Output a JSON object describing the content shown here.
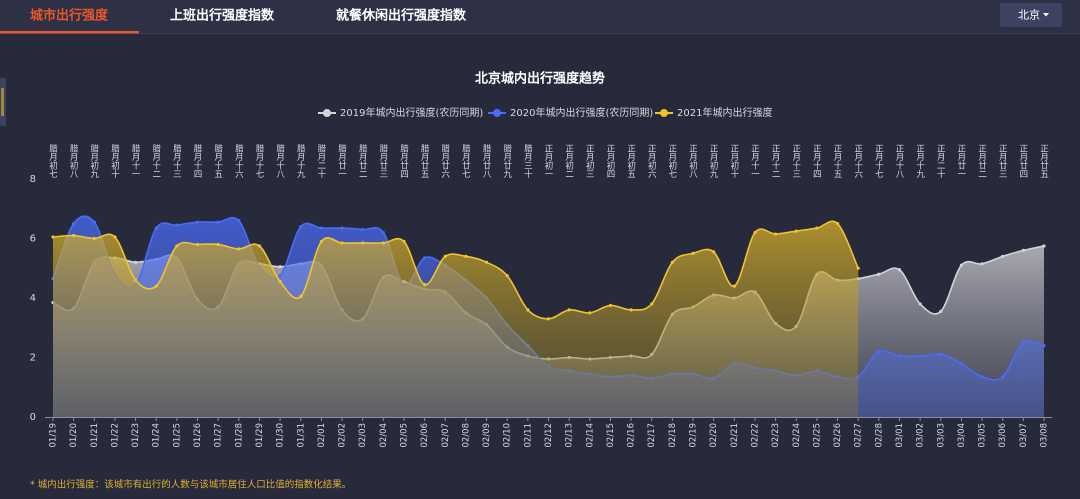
{
  "tabs": [
    "城市出行强度",
    "上班出行强度指数",
    "就餐休闲出行强度指数"
  ],
  "active_tab": 0,
  "dropdown": "北京",
  "footnote": "* 城内出行强度：该城市有出行的人数与该城市居住人口比值的指数化结果。",
  "chart_data": {
    "type": "area",
    "title": "北京城内出行强度趋势",
    "smooth": true,
    "grid": false,
    "legend": "top",
    "categories": [
      "01/19",
      "01/20",
      "01/21",
      "01/22",
      "01/23",
      "01/24",
      "01/25",
      "01/26",
      "01/27",
      "01/28",
      "01/29",
      "01/30",
      "01/31",
      "02/01",
      "02/02",
      "02/03",
      "02/04",
      "02/05",
      "02/06",
      "02/07",
      "02/08",
      "02/09",
      "02/10",
      "02/11",
      "02/12",
      "02/13",
      "02/14",
      "02/15",
      "02/16",
      "02/17",
      "02/18",
      "02/19",
      "02/20",
      "02/21",
      "02/22",
      "02/23",
      "02/24",
      "02/25",
      "02/26",
      "02/27",
      "02/28",
      "03/01",
      "03/02",
      "03/03",
      "03/04",
      "03/05",
      "03/06",
      "03/07",
      "03/08"
    ],
    "lunar_categories": [
      "腊月初七",
      "腊月初八",
      "腊月初九",
      "腊月初十",
      "腊月十一",
      "腊月十二",
      "腊月十三",
      "腊月十四",
      "腊月十五",
      "腊月十六",
      "腊月十七",
      "腊月十八",
      "腊月十九",
      "腊月二十",
      "腊月廿一",
      "腊月廿二",
      "腊月廿三",
      "腊月廿四",
      "腊月廿五",
      "腊月廿六",
      "腊月廿七",
      "腊月廿八",
      "腊月廿九",
      "腊月三十",
      "正月初一",
      "正月初二",
      "正月初三",
      "正月初四",
      "正月初五",
      "正月初六",
      "正月初七",
      "正月初八",
      "正月初九",
      "正月初十",
      "正月十一",
      "正月十二",
      "正月十三",
      "正月十四",
      "正月十五",
      "正月十六",
      "正月十七",
      "正月十八",
      "正月十九",
      "正月二十",
      "正月廿一",
      "正月廿二",
      "正月廿三",
      "正月廿四",
      "正月廿五"
    ],
    "ylim": [
      0,
      8
    ],
    "yticks": [
      0,
      2,
      4,
      6,
      8
    ],
    "series": [
      {
        "name": "2019年城内出行强度(农历同期)",
        "color": "#d4d4d8",
        "values": [
          3.85,
          3.65,
          5.2,
          5.35,
          5.2,
          5.3,
          5.35,
          3.95,
          3.7,
          5.15,
          5.15,
          5.05,
          5.15,
          5.1,
          3.6,
          3.3,
          4.7,
          4.55,
          4.3,
          4.2,
          3.5,
          3.1,
          2.35,
          2.05,
          1.95,
          2.0,
          1.95,
          2.0,
          2.05,
          2.1,
          3.45,
          3.7,
          4.1,
          4.0,
          4.2,
          3.15,
          3.05,
          4.8,
          4.6,
          4.65,
          4.8,
          4.95,
          3.8,
          3.55,
          5.1,
          5.15,
          5.4,
          5.6,
          5.75
        ]
      },
      {
        "name": "2020年城内出行强度(农历同期)",
        "color": "#4a6cf7",
        "values": [
          4.65,
          6.5,
          6.55,
          4.8,
          4.45,
          6.35,
          6.45,
          6.55,
          6.55,
          6.6,
          5.05,
          4.75,
          6.4,
          6.35,
          6.35,
          6.3,
          6.2,
          4.45,
          5.35,
          5.1,
          4.6,
          4.0,
          3.1,
          2.4,
          1.7,
          1.55,
          1.45,
          1.35,
          1.4,
          1.3,
          1.45,
          1.45,
          1.3,
          1.8,
          1.65,
          1.55,
          1.4,
          1.55,
          1.35,
          1.35,
          2.2,
          2.05,
          2.05,
          2.1,
          1.8,
          1.35,
          1.35,
          2.5,
          2.4
        ]
      },
      {
        "name": "2021年城内出行强度",
        "color": "#f0c430",
        "values": [
          6.05,
          6.1,
          6.0,
          6.05,
          4.6,
          4.4,
          5.75,
          5.8,
          5.8,
          5.65,
          5.75,
          4.55,
          4.05,
          5.9,
          5.85,
          5.85,
          5.85,
          5.9,
          4.45,
          5.4,
          5.4,
          5.2,
          4.75,
          3.6,
          3.3,
          3.6,
          3.5,
          3.75,
          3.6,
          3.8,
          5.2,
          5.5,
          5.55,
          4.4,
          6.2,
          6.15,
          6.25,
          6.35,
          6.5,
          5.0,
          null,
          null,
          null,
          null,
          null,
          null,
          null,
          null,
          null
        ]
      }
    ]
  }
}
